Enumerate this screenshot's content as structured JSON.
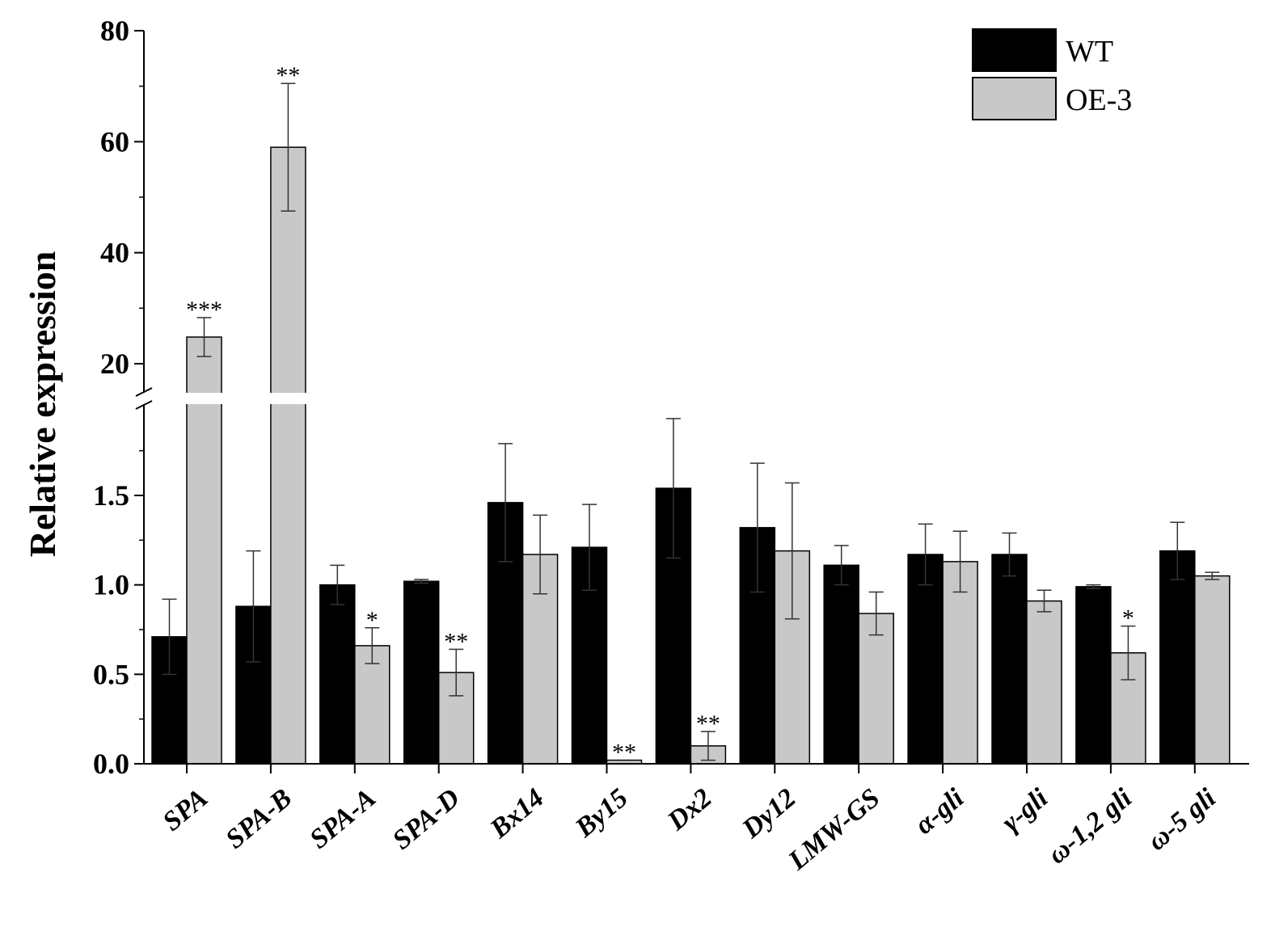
{
  "chart_data": {
    "type": "bar",
    "ylabel": "Relative expression",
    "categories": [
      "SPA",
      "SPA-B",
      "SPA-A",
      "SPA-D",
      "Bx14",
      "By15",
      "Dx2",
      "Dy12",
      "LMW-GS",
      "α-gli",
      "γ-gli",
      "ω-1,2 gli",
      "ω-5 gli"
    ],
    "y_axis": {
      "broken": true,
      "lower_segment": {
        "range": [
          0,
          1.95
        ],
        "ticks": [
          "0.0",
          "0.5",
          "1.0",
          "1.5"
        ]
      },
      "upper_segment": {
        "range": [
          15,
          80
        ],
        "ticks": [
          "20",
          "40",
          "60",
          "80"
        ]
      }
    },
    "series": [
      {
        "name": "WT",
        "color": "#000000",
        "values": [
          0.71,
          0.88,
          1.0,
          1.02,
          1.46,
          1.21,
          1.54,
          1.32,
          1.11,
          1.17,
          1.17,
          0.99,
          1.19
        ],
        "errors": [
          0.21,
          0.31,
          0.11,
          0.01,
          0.33,
          0.24,
          0.39,
          0.36,
          0.11,
          0.17,
          0.12,
          0.01,
          0.16
        ]
      },
      {
        "name": "OE-3",
        "color": "#c8c8c8",
        "values": [
          24.8,
          59.0,
          0.66,
          0.51,
          1.17,
          0.02,
          0.1,
          1.19,
          0.84,
          1.13,
          0.91,
          0.62,
          1.05
        ],
        "errors": [
          3.5,
          11.5,
          0.1,
          0.13,
          0.22,
          0.0,
          0.08,
          0.38,
          0.12,
          0.17,
          0.06,
          0.15,
          0.02
        ]
      }
    ],
    "significance": [
      "***",
      "**",
      "*",
      "**",
      "",
      "**",
      "**",
      "",
      "",
      "",
      "",
      "*",
      ""
    ],
    "legend": {
      "position": "top-right",
      "entries": [
        "WT",
        "OE-3"
      ]
    }
  }
}
